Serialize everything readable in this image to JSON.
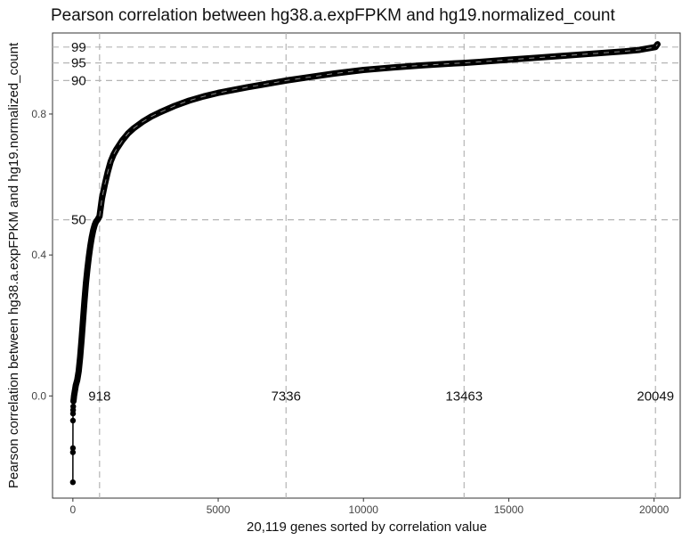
{
  "chart_data": {
    "type": "line",
    "title": "Pearson correlation between hg38.a.expFPKM and hg19.normalized_count",
    "xlabel": "20,119 genes sorted by correlation value",
    "ylabel": "Pearson correlation between hg38.a.expFPKM and hg19.normalized_count",
    "xlim": [
      -700,
      20900
    ],
    "ylim": [
      -0.29,
      1.03
    ],
    "x_ticks": [
      0,
      5000,
      10000,
      15000,
      20000
    ],
    "x_tick_labels": [
      "0",
      "5000",
      "10000",
      "15000",
      "20000"
    ],
    "y_ticks": [
      0.0,
      0.4,
      0.8
    ],
    "y_tick_labels": [
      "0.0",
      "0.4",
      "0.8"
    ],
    "grid": false,
    "series": [
      {
        "x": [
          0,
          1,
          2,
          3,
          5,
          8,
          12,
          20,
          30,
          40,
          60,
          80,
          100,
          150,
          200,
          250,
          300,
          350,
          400,
          450,
          500,
          550,
          600,
          650,
          700,
          750,
          800,
          850,
          918,
          1000,
          1100,
          1200,
          1300,
          1400,
          1500,
          1700,
          1900,
          2100,
          2400,
          2700,
          3000,
          3500,
          4000,
          4500,
          5000,
          5500,
          6000,
          6500,
          7000,
          7336,
          8000,
          9000,
          10000,
          11000,
          12000,
          13000,
          13463,
          14000,
          15000,
          16000,
          17000,
          18000,
          19000,
          19500,
          20049,
          20118
        ],
        "y": [
          -0.245,
          -0.16,
          -0.148,
          -0.07,
          -0.05,
          -0.04,
          -0.03,
          -0.015,
          -0.008,
          0.0,
          0.01,
          0.02,
          0.03,
          0.045,
          0.07,
          0.11,
          0.16,
          0.215,
          0.27,
          0.32,
          0.36,
          0.395,
          0.425,
          0.45,
          0.47,
          0.485,
          0.495,
          0.5,
          0.51,
          0.56,
          0.6,
          0.635,
          0.665,
          0.685,
          0.7,
          0.725,
          0.745,
          0.76,
          0.778,
          0.793,
          0.805,
          0.823,
          0.838,
          0.85,
          0.86,
          0.868,
          0.876,
          0.883,
          0.89,
          0.895,
          0.903,
          0.915,
          0.925,
          0.932,
          0.938,
          0.943,
          0.945,
          0.948,
          0.954,
          0.96,
          0.966,
          0.972,
          0.978,
          0.982,
          0.99,
          0.998
        ]
      }
    ],
    "v_lines": [
      918,
      7336,
      13463,
      20049
    ],
    "v_line_labels": [
      "918",
      "7336",
      "13463",
      "20049"
    ],
    "h_lines": [
      0.5,
      0.895,
      0.945,
      0.99
    ],
    "h_line_labels": [
      "50",
      "90",
      "95",
      "99"
    ],
    "line_color": "#000000",
    "guide_color": "#b5b5b5"
  }
}
